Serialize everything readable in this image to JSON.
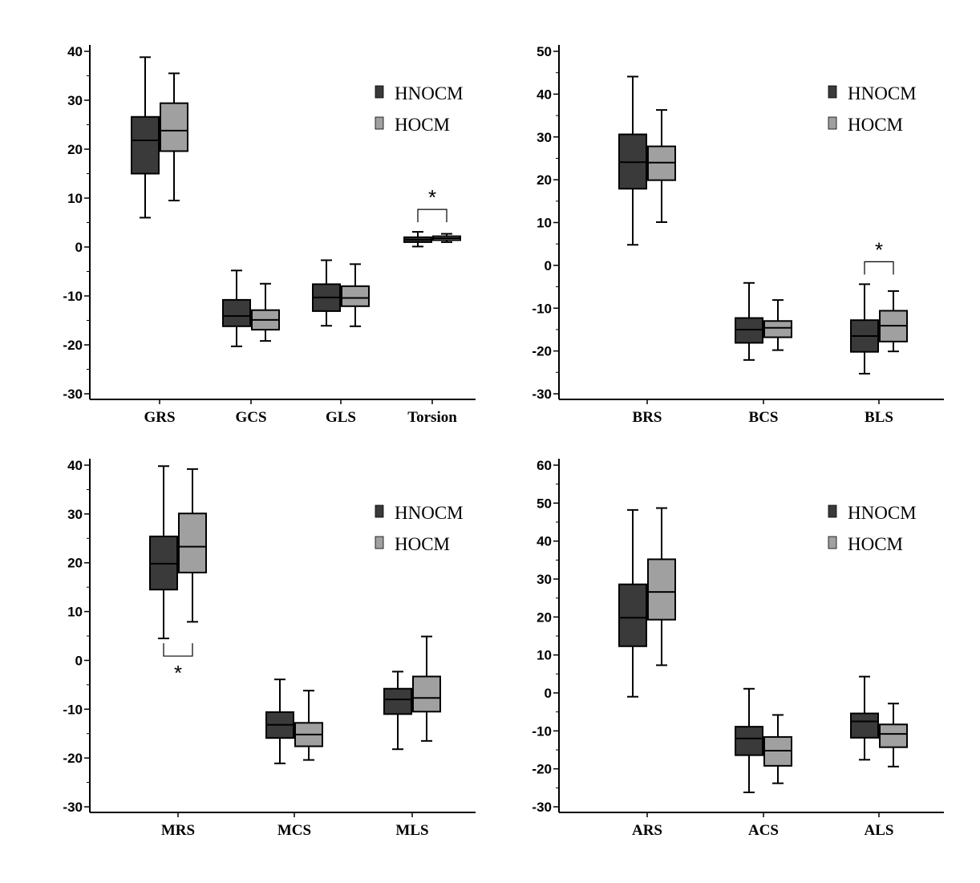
{
  "colors": {
    "HNOCM": "#3a3a3a",
    "HOCM": "#a0a0a0",
    "line": "#000000"
  },
  "legend": [
    "HNOCM",
    "HOCM"
  ],
  "chart_data": [
    {
      "type": "box",
      "title": "",
      "categories": [
        "GRS",
        "GCS",
        "GLS",
        "Torsion"
      ],
      "ylim": [
        -30,
        40
      ],
      "yticks": [
        -30,
        -20,
        -10,
        0,
        10,
        20,
        30,
        40
      ],
      "legend_position": "top-right",
      "series": [
        {
          "name": "HNOCM",
          "boxes": [
            {
              "min": 6,
              "q1": 15,
              "median": 21.8,
              "q3": 26.6,
              "max": 38.8
            },
            {
              "min": -20.3,
              "q1": -16.2,
              "median": -14.1,
              "q3": -10.8,
              "max": -4.8
            },
            {
              "min": -16.1,
              "q1": -13.1,
              "median": -10.3,
              "q3": -7.6,
              "max": -2.7
            },
            {
              "min": 0.1,
              "q1": 1.0,
              "median": 1.5,
              "q3": 2.0,
              "max": 3.1
            }
          ]
        },
        {
          "name": "HOCM",
          "boxes": [
            {
              "min": 9.5,
              "q1": 19.6,
              "median": 23.8,
              "q3": 29.4,
              "max": 35.5
            },
            {
              "min": -19.2,
              "q1": -16.9,
              "median": -14.9,
              "q3": -12.9,
              "max": -7.5
            },
            {
              "min": -16.2,
              "q1": -12.1,
              "median": -10.4,
              "q3": -8.0,
              "max": -3.5
            },
            {
              "min": 1.0,
              "q1": 1.4,
              "median": 1.8,
              "q3": 2.2,
              "max": 2.7
            }
          ]
        }
      ],
      "annotations": [
        {
          "category": "Torsion",
          "text": "*",
          "position": "above"
        }
      ]
    },
    {
      "type": "box",
      "title": "",
      "categories": [
        "BRS",
        "BCS",
        "BLS"
      ],
      "ylim": [
        -30,
        50
      ],
      "yticks": [
        -30,
        -20,
        -10,
        0,
        10,
        20,
        30,
        40,
        50
      ],
      "legend_position": "top-right",
      "series": [
        {
          "name": "HNOCM",
          "boxes": [
            {
              "min": 4.8,
              "q1": 17.9,
              "median": 24.1,
              "q3": 30.6,
              "max": 44.1
            },
            {
              "min": -22.1,
              "q1": -18.1,
              "median": -15.0,
              "q3": -12.3,
              "max": -4.1
            },
            {
              "min": -25.3,
              "q1": -20.2,
              "median": -16.5,
              "q3": -12.8,
              "max": -4.4
            }
          ]
        },
        {
          "name": "HOCM",
          "boxes": [
            {
              "min": 10.1,
              "q1": 19.9,
              "median": 24.0,
              "q3": 27.8,
              "max": 36.3
            },
            {
              "min": -19.8,
              "q1": -16.8,
              "median": -14.6,
              "q3": -13.0,
              "max": -8.1
            },
            {
              "min": -20.1,
              "q1": -17.8,
              "median": -14.1,
              "q3": -10.6,
              "max": -6.0
            }
          ]
        }
      ],
      "annotations": [
        {
          "category": "BLS",
          "text": "*",
          "position": "above"
        }
      ]
    },
    {
      "type": "box",
      "title": "",
      "categories": [
        "MRS",
        "MCS",
        "MLS"
      ],
      "ylim": [
        -30,
        40
      ],
      "yticks": [
        -30,
        -20,
        -10,
        0,
        10,
        20,
        30,
        40
      ],
      "legend_position": "top-right",
      "series": [
        {
          "name": "HNOCM",
          "boxes": [
            {
              "min": 4.5,
              "q1": 14.5,
              "median": 19.8,
              "q3": 25.4,
              "max": 39.8
            },
            {
              "min": -21.1,
              "q1": -15.9,
              "median": -13.2,
              "q3": -10.6,
              "max": -3.9
            },
            {
              "min": -18.2,
              "q1": -11.0,
              "median": -8.0,
              "q3": -5.8,
              "max": -2.3
            }
          ]
        },
        {
          "name": "HOCM",
          "boxes": [
            {
              "min": 7.9,
              "q1": 18.0,
              "median": 23.3,
              "q3": 30.1,
              "max": 39.2
            },
            {
              "min": -20.4,
              "q1": -17.6,
              "median": -15.2,
              "q3": -12.8,
              "max": -6.2
            },
            {
              "min": -16.5,
              "q1": -10.5,
              "median": -7.7,
              "q3": -3.3,
              "max": 4.9
            }
          ]
        }
      ],
      "annotations": [
        {
          "category": "MRS",
          "text": "*",
          "position": "below"
        }
      ]
    },
    {
      "type": "box",
      "title": "",
      "categories": [
        "ARS",
        "ACS",
        "ALS"
      ],
      "ylim": [
        -30,
        60
      ],
      "yticks": [
        -30,
        -20,
        -10,
        0,
        10,
        20,
        30,
        40,
        50,
        60
      ],
      "legend_position": "top-right",
      "series": [
        {
          "name": "HNOCM",
          "boxes": [
            {
              "min": -1.0,
              "q1": 12.3,
              "median": 19.8,
              "q3": 28.6,
              "max": 48.2
            },
            {
              "min": -26.2,
              "q1": -16.4,
              "median": -12.0,
              "q3": -8.9,
              "max": 1.1
            },
            {
              "min": -17.6,
              "q1": -11.8,
              "median": -7.5,
              "q3": -5.4,
              "max": 4.3
            }
          ]
        },
        {
          "name": "HOCM",
          "boxes": [
            {
              "min": 7.3,
              "q1": 19.3,
              "median": 26.6,
              "q3": 35.2,
              "max": 48.7
            },
            {
              "min": -23.8,
              "q1": -19.2,
              "median": -15.2,
              "q3": -11.6,
              "max": -5.8
            },
            {
              "min": -19.4,
              "q1": -14.3,
              "median": -10.8,
              "q3": -8.3,
              "max": -2.8
            }
          ]
        }
      ],
      "annotations": []
    }
  ]
}
